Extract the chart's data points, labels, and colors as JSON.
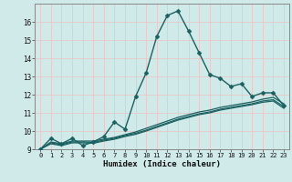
{
  "title": "",
  "xlabel": "Humidex (Indice chaleur)",
  "ylabel": "",
  "background_color": "#d0eaea",
  "grid_color": "#b8d8d8",
  "line_color": "#1a6060",
  "xlim": [
    -0.5,
    23.5
  ],
  "ylim": [
    9,
    17
  ],
  "xticks": [
    0,
    1,
    2,
    3,
    4,
    5,
    6,
    7,
    8,
    9,
    10,
    11,
    12,
    13,
    14,
    15,
    16,
    17,
    18,
    19,
    20,
    21,
    22,
    23
  ],
  "yticks": [
    9,
    10,
    11,
    12,
    13,
    14,
    15,
    16
  ],
  "series": [
    {
      "x": [
        0,
        1,
        2,
        3,
        4,
        5,
        6,
        7,
        8,
        9,
        10,
        11,
        12,
        13,
        14,
        15,
        16,
        17,
        18,
        19,
        20,
        21,
        22,
        23
      ],
      "y": [
        9.0,
        9.6,
        9.3,
        9.6,
        9.2,
        9.4,
        9.7,
        10.5,
        10.1,
        11.9,
        13.2,
        15.2,
        16.35,
        16.6,
        15.5,
        14.3,
        13.1,
        12.9,
        12.45,
        12.6,
        11.9,
        12.1,
        12.1,
        11.4
      ],
      "marker": "D",
      "markersize": 2.5,
      "linewidth": 1.0,
      "zorder": 4
    },
    {
      "x": [
        0,
        1,
        2,
        3,
        4,
        5,
        6,
        7,
        8,
        9,
        10,
        11,
        12,
        13,
        14,
        15,
        16,
        17,
        18,
        19,
        20,
        21,
        22,
        23
      ],
      "y": [
        9.0,
        9.4,
        9.3,
        9.45,
        9.45,
        9.45,
        9.55,
        9.65,
        9.8,
        9.95,
        10.15,
        10.35,
        10.55,
        10.75,
        10.9,
        11.05,
        11.15,
        11.3,
        11.4,
        11.5,
        11.6,
        11.75,
        11.85,
        11.5
      ],
      "marker": null,
      "markersize": 0,
      "linewidth": 0.9,
      "zorder": 3
    },
    {
      "x": [
        0,
        1,
        2,
        3,
        4,
        5,
        6,
        7,
        8,
        9,
        10,
        11,
        12,
        13,
        14,
        15,
        16,
        17,
        18,
        19,
        20,
        21,
        22,
        23
      ],
      "y": [
        9.0,
        9.35,
        9.25,
        9.4,
        9.4,
        9.38,
        9.5,
        9.6,
        9.75,
        9.88,
        10.05,
        10.25,
        10.45,
        10.65,
        10.8,
        10.95,
        11.05,
        11.2,
        11.3,
        11.4,
        11.5,
        11.65,
        11.72,
        11.35
      ],
      "marker": null,
      "markersize": 0,
      "linewidth": 0.9,
      "zorder": 3
    },
    {
      "x": [
        0,
        1,
        2,
        3,
        4,
        5,
        6,
        7,
        8,
        9,
        10,
        11,
        12,
        13,
        14,
        15,
        16,
        17,
        18,
        19,
        20,
        21,
        22,
        23
      ],
      "y": [
        9.0,
        9.3,
        9.2,
        9.35,
        9.35,
        9.33,
        9.45,
        9.55,
        9.7,
        9.82,
        10.0,
        10.2,
        10.4,
        10.6,
        10.75,
        10.9,
        11.0,
        11.15,
        11.25,
        11.35,
        11.45,
        11.58,
        11.65,
        11.25
      ],
      "marker": null,
      "markersize": 0,
      "linewidth": 0.9,
      "zorder": 3
    }
  ]
}
